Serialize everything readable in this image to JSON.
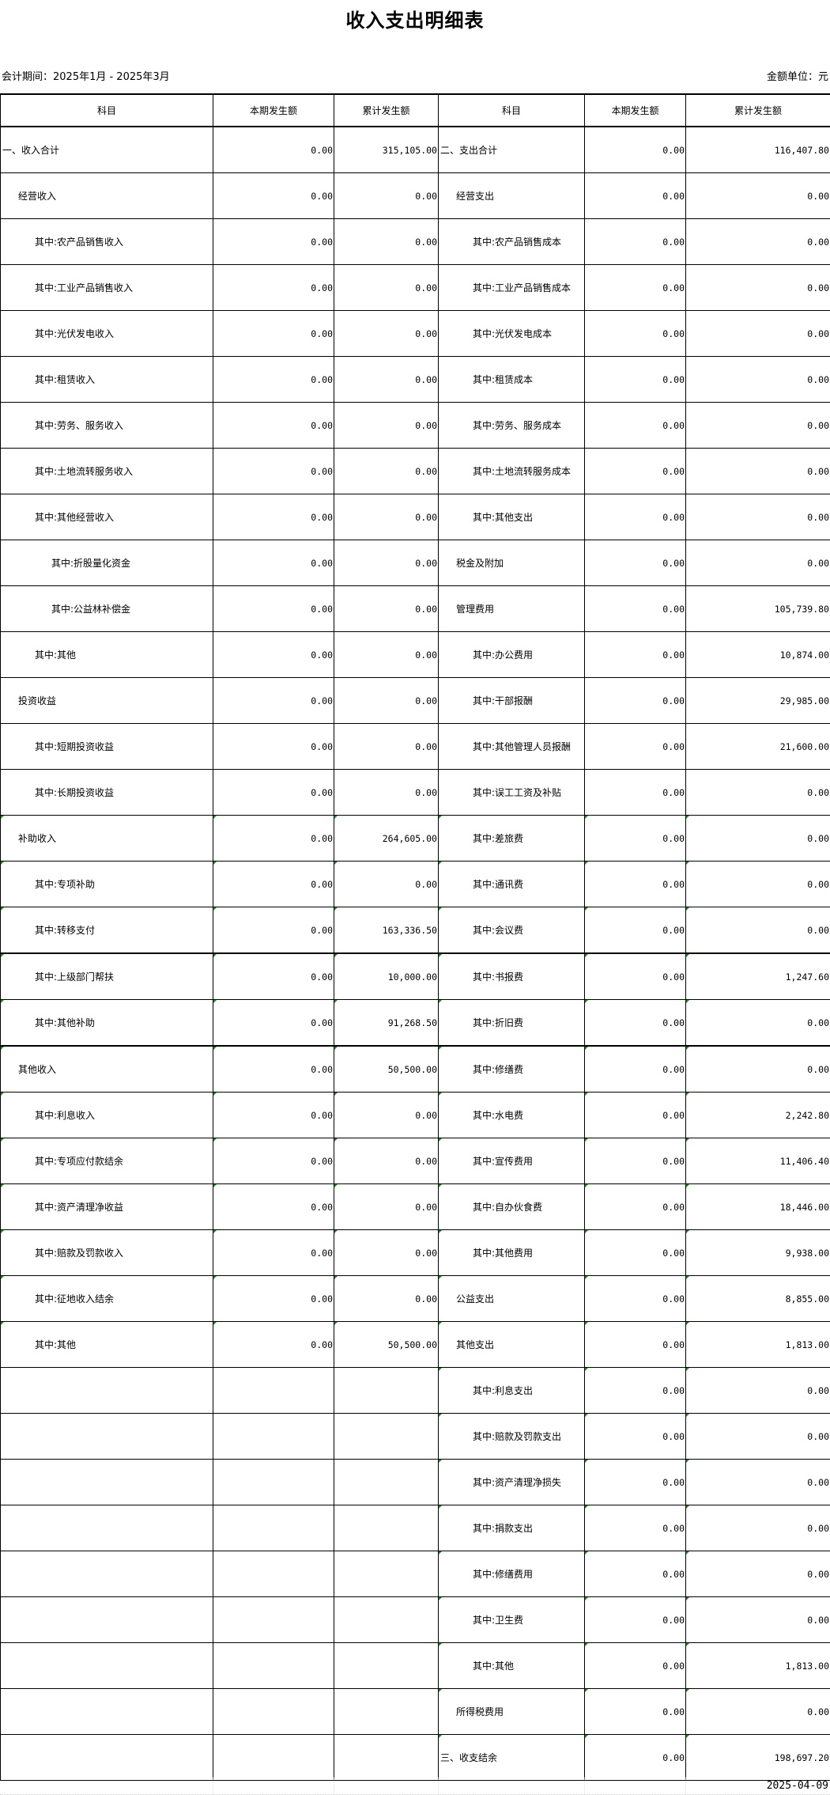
{
  "title": "收入支出明细表",
  "period": "会计期间：2025年1月 - 2025年3月",
  "unit": "金额单位：元",
  "columns": [
    "科目",
    "本期发生额",
    "累计发生额",
    "科目",
    "本期发生额",
    "累计发生额"
  ],
  "rows": [
    {
      "l": "一、收入合计",
      "ll": 0,
      "lc": "0.00",
      "la": "315,105.00",
      "r": "二、支出合计",
      "rl": 0,
      "rc": "0.00",
      "ra": "116,407.80"
    },
    {
      "l": "经营收入",
      "ll": 1,
      "lc": "0.00",
      "la": "0.00",
      "r": "经营支出",
      "rl": 1,
      "rc": "0.00",
      "ra": "0.00"
    },
    {
      "l": "其中:农产品销售收入",
      "ll": 2,
      "lc": "0.00",
      "la": "0.00",
      "r": "其中:农产品销售成本",
      "rl": 2,
      "rc": "0.00",
      "ra": "0.00"
    },
    {
      "l": "其中:工业产品销售收入",
      "ll": 2,
      "lc": "0.00",
      "la": "0.00",
      "r": "其中:工业产品销售成本",
      "rl": 2,
      "rc": "0.00",
      "ra": "0.00"
    },
    {
      "l": "其中:光伏发电收入",
      "ll": 2,
      "lc": "0.00",
      "la": "0.00",
      "r": "其中:光伏发电成本",
      "rl": 2,
      "rc": "0.00",
      "ra": "0.00"
    },
    {
      "l": "其中:租赁收入",
      "ll": 2,
      "lc": "0.00",
      "la": "0.00",
      "r": "其中:租赁成本",
      "rl": 2,
      "rc": "0.00",
      "ra": "0.00"
    },
    {
      "l": "其中:劳务、服务收入",
      "ll": 2,
      "lc": "0.00",
      "la": "0.00",
      "r": "其中:劳务、服务成本",
      "rl": 2,
      "rc": "0.00",
      "ra": "0.00"
    },
    {
      "l": "其中:土地流转服务收入",
      "ll": 2,
      "lc": "0.00",
      "la": "0.00",
      "r": "其中:土地流转服务成本",
      "rl": 2,
      "rc": "0.00",
      "ra": "0.00"
    },
    {
      "l": "其中:其他经营收入",
      "ll": 2,
      "lc": "0.00",
      "la": "0.00",
      "r": "其中:其他支出",
      "rl": 2,
      "rc": "0.00",
      "ra": "0.00"
    },
    {
      "l": "其中:折股量化资金",
      "ll": 3,
      "lc": "0.00",
      "la": "0.00",
      "r": "税金及附加",
      "rl": 1,
      "rc": "0.00",
      "ra": "0.00"
    },
    {
      "l": "其中:公益林补偿金",
      "ll": 3,
      "lc": "0.00",
      "la": "0.00",
      "r": "管理费用",
      "rl": 1,
      "rc": "0.00",
      "ra": "105,739.80"
    },
    {
      "l": "其中:其他",
      "ll": 2,
      "lc": "0.00",
      "la": "0.00",
      "r": "其中:办公费用",
      "rl": 2,
      "rc": "0.00",
      "ra": "10,874.00"
    },
    {
      "l": "投资收益",
      "ll": 1,
      "lc": "0.00",
      "la": "0.00",
      "r": "其中:干部报酬",
      "rl": 2,
      "rc": "0.00",
      "ra": "29,985.00"
    },
    {
      "l": "其中:短期投资收益",
      "ll": 2,
      "lc": "0.00",
      "la": "0.00",
      "r": "其中:其他管理人员报酬",
      "rl": 2,
      "rc": "0.00",
      "ra": "21,600.00"
    },
    {
      "l": "其中:长期投资收益",
      "ll": 2,
      "lc": "0.00",
      "la": "0.00",
      "r": "其中:误工工资及补贴",
      "rl": 2,
      "rc": "0.00",
      "ra": "0.00"
    },
    {
      "l": "补助收入",
      "ll": 1,
      "lc": "0.00",
      "la": "264,605.00",
      "r": "其中:差旅费",
      "rl": 2,
      "rc": "0.00",
      "ra": "0.00"
    },
    {
      "l": "其中:专项补助",
      "ll": 2,
      "lc": "0.00",
      "la": "0.00",
      "r": "其中:通讯费",
      "rl": 2,
      "rc": "0.00",
      "ra": "0.00"
    },
    {
      "l": "其中:转移支付",
      "ll": 2,
      "lc": "0.00",
      "la": "163,336.50",
      "r": "其中:会议费",
      "rl": 2,
      "rc": "0.00",
      "ra": "0.00"
    },
    {
      "l": "其中:上级部门帮扶",
      "ll": 2,
      "lc": "0.00",
      "la": "10,000.00",
      "r": "其中:书报费",
      "rl": 2,
      "rc": "0.00",
      "ra": "1,247.60"
    },
    {
      "l": "其中:其他补助",
      "ll": 2,
      "lc": "0.00",
      "la": "91,268.50",
      "r": "其中:折旧费",
      "rl": 2,
      "rc": "0.00",
      "ra": "0.00"
    },
    {
      "l": "其他收入",
      "ll": 1,
      "lc": "0.00",
      "la": "50,500.00",
      "r": "其中:修缮费",
      "rl": 2,
      "rc": "0.00",
      "ra": "0.00"
    },
    {
      "l": "其中:利息收入",
      "ll": 2,
      "lc": "0.00",
      "la": "0.00",
      "r": "其中:水电费",
      "rl": 2,
      "rc": "0.00",
      "ra": "2,242.80"
    },
    {
      "l": "其中:专项应付款结余",
      "ll": 2,
      "lc": "0.00",
      "la": "0.00",
      "r": "其中:宣传费用",
      "rl": 2,
      "rc": "0.00",
      "ra": "11,406.40"
    },
    {
      "l": "其中:资产清理净收益",
      "ll": 2,
      "lc": "0.00",
      "la": "0.00",
      "r": "其中:自办伙食费",
      "rl": 2,
      "rc": "0.00",
      "ra": "18,446.00"
    },
    {
      "l": "其中:赔款及罚款收入",
      "ll": 2,
      "lc": "0.00",
      "la": "0.00",
      "r": "其中:其他费用",
      "rl": 2,
      "rc": "0.00",
      "ra": "9,938.00"
    },
    {
      "l": "其中:征地收入结余",
      "ll": 2,
      "lc": "0.00",
      "la": "0.00",
      "r": "公益支出",
      "rl": 1,
      "rc": "0.00",
      "ra": "8,855.00"
    },
    {
      "l": "其中:其他",
      "ll": 2,
      "lc": "0.00",
      "la": "50,500.00",
      "r": "其他支出",
      "rl": 1,
      "rc": "0.00",
      "ra": "1,813.00"
    },
    {
      "l": "",
      "ll": 0,
      "lc": "",
      "la": "",
      "r": "其中:利息支出",
      "rl": 2,
      "rc": "0.00",
      "ra": "0.00"
    },
    {
      "l": "",
      "ll": 0,
      "lc": "",
      "la": "",
      "r": "其中:赔款及罚款支出",
      "rl": 2,
      "rc": "0.00",
      "ra": "0.00"
    },
    {
      "l": "",
      "ll": 0,
      "lc": "",
      "la": "",
      "r": "其中:资产清理净损失",
      "rl": 2,
      "rc": "0.00",
      "ra": "0.00"
    },
    {
      "l": "",
      "ll": 0,
      "lc": "",
      "la": "",
      "r": "其中:捐款支出",
      "rl": 2,
      "rc": "0.00",
      "ra": "0.00"
    },
    {
      "l": "",
      "ll": 0,
      "lc": "",
      "la": "",
      "r": "其中:修缮费用",
      "rl": 2,
      "rc": "0.00",
      "ra": "0.00"
    },
    {
      "l": "",
      "ll": 0,
      "lc": "",
      "la": "",
      "r": "其中:卫生费",
      "rl": 2,
      "rc": "0.00",
      "ra": "0.00"
    },
    {
      "l": "",
      "ll": 0,
      "lc": "",
      "la": "",
      "r": "其中:其他",
      "rl": 2,
      "rc": "0.00",
      "ra": "1,813.00"
    },
    {
      "l": "",
      "ll": 0,
      "lc": "",
      "la": "",
      "r": "所得税费用",
      "rl": 1,
      "rc": "0.00",
      "ra": "0.00"
    },
    {
      "l": "",
      "ll": 0,
      "lc": "",
      "la": "",
      "r": "三、收支结余",
      "rl": 0,
      "rc": "0.00",
      "ra": "198,697.20"
    }
  ],
  "print_date": "2025-04-09",
  "colors": {
    "border": "#000000",
    "cell_marker": "#1a8a1a"
  }
}
